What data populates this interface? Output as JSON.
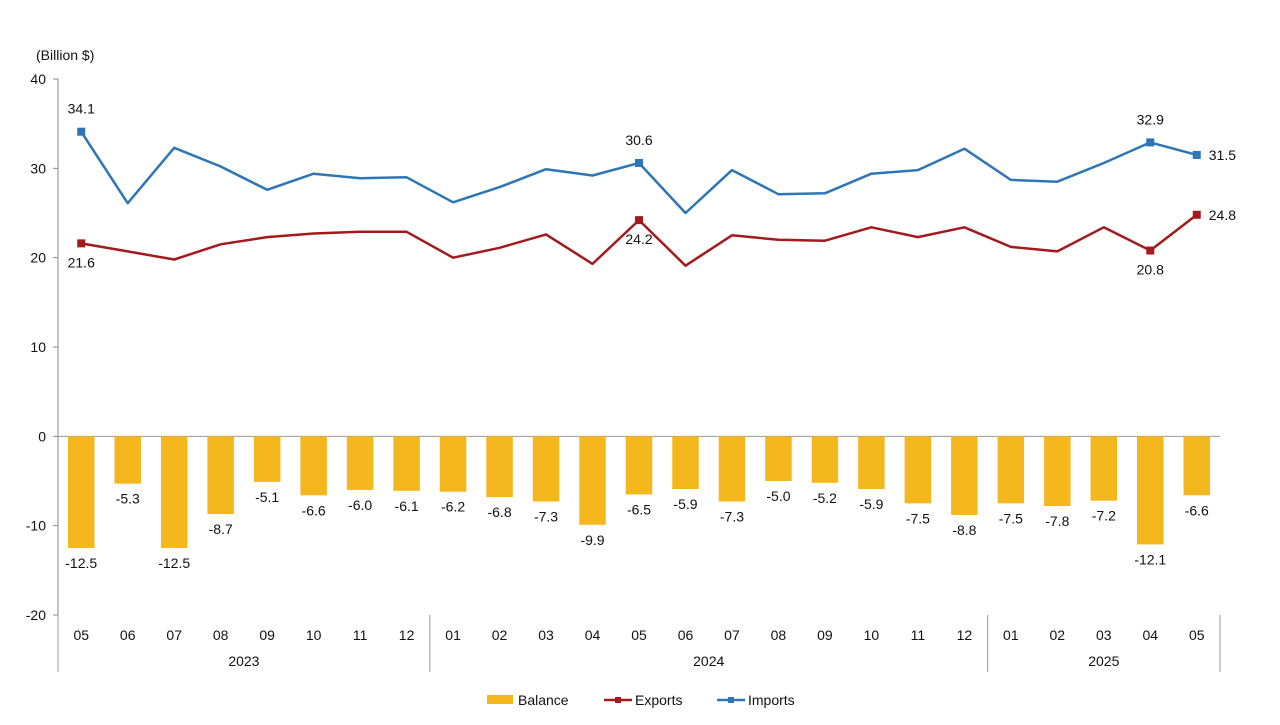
{
  "chart_data": {
    "type": "bar+line",
    "unit_label": "(Billion $)",
    "ylim": [
      -20,
      40
    ],
    "yticks": [
      -20,
      -10,
      0,
      10,
      20,
      30,
      40
    ],
    "categories": [
      "05",
      "06",
      "07",
      "08",
      "09",
      "10",
      "11",
      "12",
      "01",
      "02",
      "03",
      "04",
      "05",
      "06",
      "07",
      "08",
      "09",
      "10",
      "11",
      "12",
      "01",
      "02",
      "03",
      "04",
      "05"
    ],
    "year_groups": [
      {
        "label": "2023",
        "count": 8
      },
      {
        "label": "2024",
        "count": 12
      },
      {
        "label": "2025",
        "count": 5
      }
    ],
    "series": [
      {
        "name": "Balance",
        "type": "bar",
        "color": "#F5B71E",
        "values": [
          -12.5,
          -5.3,
          -12.5,
          -8.7,
          -5.1,
          -6.6,
          -6.0,
          -6.1,
          -6.2,
          -6.8,
          -7.3,
          -9.9,
          -6.5,
          -5.9,
          -7.3,
          -5.0,
          -5.2,
          -5.9,
          -7.5,
          -8.8,
          -7.5,
          -7.8,
          -7.2,
          -12.1,
          -6.6
        ]
      },
      {
        "name": "Exports",
        "type": "line",
        "color": "#A31A1C",
        "values": [
          21.6,
          20.7,
          19.8,
          21.5,
          22.3,
          22.7,
          22.9,
          22.9,
          20.0,
          21.1,
          22.6,
          19.3,
          24.2,
          19.1,
          22.5,
          22.0,
          21.9,
          23.4,
          22.3,
          23.4,
          21.2,
          20.7,
          23.4,
          20.8,
          24.8
        ],
        "labeled_points": [
          {
            "index": 0,
            "label": "21.6"
          },
          {
            "index": 12,
            "label": "24.2"
          },
          {
            "index": 23,
            "label": "20.8"
          },
          {
            "index": 24,
            "label": "24.8"
          }
        ]
      },
      {
        "name": "Imports",
        "type": "line",
        "color": "#2E75B6",
        "values": [
          34.1,
          26.1,
          32.3,
          30.2,
          27.6,
          29.4,
          28.9,
          29.0,
          26.2,
          27.9,
          29.9,
          29.2,
          30.6,
          25.0,
          29.8,
          27.1,
          27.2,
          29.4,
          29.8,
          32.2,
          28.7,
          28.5,
          30.6,
          32.9,
          31.5
        ],
        "labeled_points": [
          {
            "index": 0,
            "label": "34.1"
          },
          {
            "index": 12,
            "label": "30.6"
          },
          {
            "index": 23,
            "label": "32.9"
          },
          {
            "index": 24,
            "label": "31.5"
          }
        ]
      }
    ],
    "bar_labels": [
      "-12.5",
      "-5.3",
      "-12.5",
      "-8.7",
      "-5.1",
      "-6.6",
      "-6.0",
      "-6.1",
      "-6.2",
      "-6.8",
      "-7.3",
      "-9.9",
      "-6.5",
      "-5.9",
      "-7.3",
      "-5.0",
      "-5.2",
      "-5.9",
      "-7.5",
      "-8.8",
      "-7.5",
      "-7.8",
      "-7.2",
      "-12.1",
      "-6.6"
    ],
    "legend": {
      "position": "bottom-center",
      "items": [
        "Balance",
        "Exports",
        "Imports"
      ]
    },
    "grid": false
  }
}
